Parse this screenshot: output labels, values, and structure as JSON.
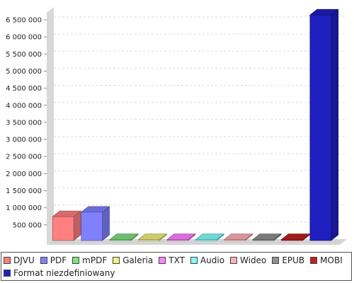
{
  "chart_data": {
    "type": "bar",
    "title": "",
    "xlabel": "",
    "ylabel": "",
    "ylim": [
      0,
      6500000
    ],
    "ytick_step": 500000,
    "yticks": [
      "500 000",
      "1 000 000",
      "1 500 000",
      "2 000 000",
      "2 500 000",
      "3 000 000",
      "3 500 000",
      "4 000 000",
      "4 500 000",
      "5 000 000",
      "5 500 000",
      "6 000 000",
      "6 500 000"
    ],
    "grid": true,
    "legend_position": "bottom",
    "categories": [
      "DJVU",
      "PDF",
      "mPDF",
      "Galeria",
      "TXT",
      "Audio",
      "Wideo",
      "EPUB",
      "MOBI",
      "Format niezdefiniowany"
    ],
    "values": [
      700000,
      830000,
      5000,
      30000,
      5000,
      5000,
      5000,
      5000,
      5000,
      6600000
    ],
    "colors": [
      "#ff8080",
      "#8080ff",
      "#80e080",
      "#f0f080",
      "#ff80ff",
      "#80ffff",
      "#ffb0b0",
      "#909090",
      "#c02020",
      "#2020c0"
    ]
  }
}
